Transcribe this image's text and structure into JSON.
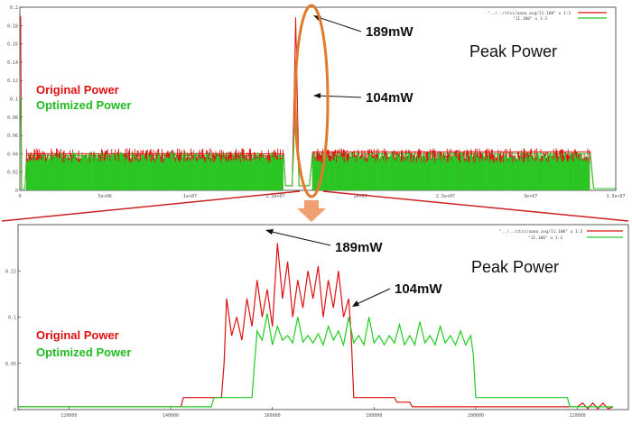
{
  "colors": {
    "original": "#dd1111",
    "optimized": "#22cc22",
    "highlight_ellipse": "#e07a2c",
    "zoom_lines": "#cc2222",
    "zoom_arrow": "#f0a070",
    "frame": "#333333"
  },
  "overview": {
    "title": "Peak Power",
    "series_labels": [
      "Original Power",
      "Optimized Power"
    ],
    "legend_keys": [
      "\"../../ctsi/aaaa_avg/11.100\" u 1:3",
      "\"11.100\" u 1:3"
    ],
    "annotations": [
      {
        "text": "189mW",
        "series": "original"
      },
      {
        "text": "104mW",
        "series": "optimized"
      }
    ]
  },
  "zoom": {
    "title": "Peak Power",
    "series_labels": [
      "Original Power",
      "Optimized Power"
    ],
    "legend_keys": [
      "\"../../ctsi/aaaa_avg/11.100\" u 1:3",
      "\"11.100\" u 1:3"
    ],
    "annotations": [
      {
        "text": "189mW",
        "series": "original"
      },
      {
        "text": "104mW",
        "series": "optimized"
      }
    ]
  },
  "chart_data": [
    {
      "type": "area",
      "title": "Peak Power",
      "xlim": [
        0,
        35000000
      ],
      "ylim": [
        0,
        0.2
      ],
      "x_ticks": [
        "0",
        "5e+06",
        "1e+07",
        "1.5e+07",
        "2e+07",
        "2.5e+07",
        "3e+07",
        "3.5e+07"
      ],
      "x_tick_values": [
        0,
        5000000,
        10000000,
        15000000,
        20000000,
        25000000,
        30000000,
        35000000
      ],
      "y_ticks": [
        "0",
        "0.02",
        "0.04",
        "0.06",
        "0.08",
        "0.1",
        "0.12",
        "0.14",
        "0.16",
        "0.18",
        "0.2"
      ],
      "y_tick_values": [
        0,
        0.02,
        0.04,
        0.06,
        0.08,
        0.1,
        0.12,
        0.14,
        0.16,
        0.18,
        0.2
      ],
      "series": [
        {
          "name": "Original Power",
          "x": [
            0,
            50000,
            100000,
            300000,
            400000,
            15500000,
            15600000,
            16000000,
            16200000,
            16400000,
            16600000,
            17000000,
            17200000,
            33500000,
            33700000,
            35000000
          ],
          "y": [
            0.19,
            0.19,
            0.002,
            0.002,
            0.04,
            0.04,
            0.005,
            0.005,
            0.189,
            0.005,
            0.005,
            0.005,
            0.042,
            0.042,
            0.002,
            0.002
          ]
        },
        {
          "name": "Optimized Power",
          "x": [
            0,
            50000,
            100000,
            300000,
            400000,
            15500000,
            15600000,
            16000000,
            16200000,
            16400000,
            16600000,
            17000000,
            17200000,
            33500000,
            33700000,
            35000000
          ],
          "y": [
            0.1,
            0.1,
            0.002,
            0.002,
            0.038,
            0.038,
            0.005,
            0.005,
            0.104,
            0.005,
            0.005,
            0.005,
            0.04,
            0.04,
            0.002,
            0.002
          ]
        }
      ]
    },
    {
      "type": "line",
      "title": "Peak Power",
      "xlim": [
        110000,
        230000
      ],
      "ylim": [
        0,
        0.2
      ],
      "x_ticks": [
        "120000",
        "140000",
        "160000",
        "180000",
        "200000",
        "220000"
      ],
      "x_tick_values": [
        120000,
        140000,
        160000,
        180000,
        200000,
        220000
      ],
      "y_ticks": [
        "0",
        "0.05",
        "0.1",
        "0.15"
      ],
      "y_tick_values": [
        0,
        0.05,
        0.1,
        0.15
      ],
      "series": [
        {
          "name": "Original Power",
          "x": [
            110000,
            142000,
            142500,
            150000,
            150500,
            151000,
            152000,
            153000,
            154000,
            155000,
            156000,
            157000,
            158000,
            159000,
            160000,
            161000,
            162000,
            163000,
            164000,
            165000,
            166000,
            167000,
            168000,
            169000,
            170000,
            171000,
            172000,
            173000,
            174000,
            175000,
            175500,
            176000,
            184000,
            184500,
            187000,
            187500,
            220000,
            221000,
            222000,
            223000,
            224000,
            225000,
            226000,
            227000
          ],
          "y": [
            0.003,
            0.003,
            0.013,
            0.013,
            0.05,
            0.12,
            0.08,
            0.1,
            0.075,
            0.12,
            0.09,
            0.14,
            0.1,
            0.13,
            0.09,
            0.18,
            0.12,
            0.16,
            0.1,
            0.14,
            0.11,
            0.15,
            0.12,
            0.155,
            0.1,
            0.14,
            0.11,
            0.15,
            0.1,
            0.12,
            0.08,
            0.013,
            0.013,
            0.008,
            0.008,
            0.003,
            0.003,
            0.007,
            0.001,
            0.007,
            0.001,
            0.007,
            0.001,
            0.003
          ]
        },
        {
          "name": "Optimized Power",
          "x": [
            110000,
            148000,
            148500,
            156000,
            156500,
            157000,
            158000,
            159000,
            160000,
            161000,
            162000,
            163000,
            164000,
            165000,
            166000,
            167000,
            168000,
            169000,
            170000,
            171000,
            172000,
            173000,
            174000,
            175000,
            176000,
            177000,
            178000,
            179000,
            180000,
            181000,
            182000,
            183000,
            184000,
            185000,
            186000,
            187000,
            188000,
            189000,
            190000,
            191000,
            192000,
            193000,
            194000,
            195000,
            196000,
            197000,
            198000,
            199000,
            199500,
            200000,
            218000,
            218500,
            227000
          ],
          "y": [
            0.003,
            0.003,
            0.013,
            0.013,
            0.05,
            0.085,
            0.075,
            0.104,
            0.07,
            0.09,
            0.075,
            0.08,
            0.072,
            0.1,
            0.073,
            0.08,
            0.072,
            0.082,
            0.07,
            0.09,
            0.075,
            0.085,
            0.07,
            0.1,
            0.072,
            0.08,
            0.07,
            0.1,
            0.072,
            0.08,
            0.07,
            0.08,
            0.072,
            0.092,
            0.07,
            0.08,
            0.07,
            0.095,
            0.072,
            0.08,
            0.07,
            0.09,
            0.072,
            0.08,
            0.07,
            0.085,
            0.07,
            0.08,
            0.06,
            0.013,
            0.013,
            0.003,
            0.003
          ]
        }
      ]
    }
  ]
}
